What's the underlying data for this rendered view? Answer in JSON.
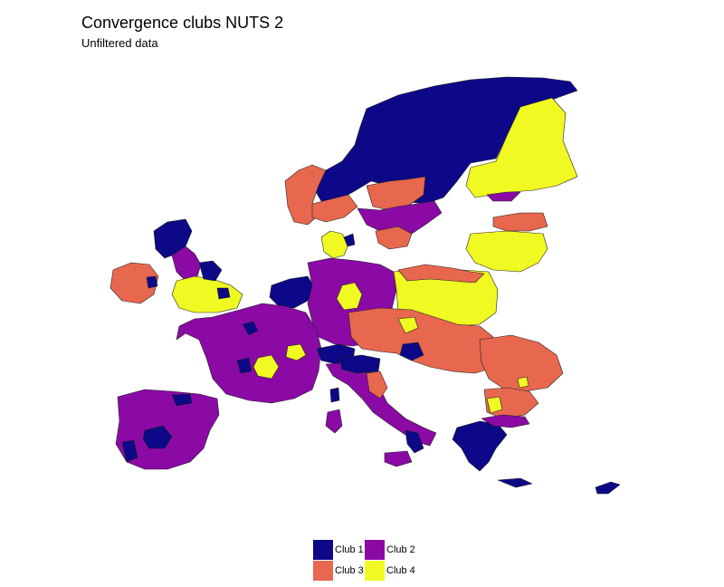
{
  "title": "Convergence clubs NUTS 2",
  "subtitle": "Unfiltered data",
  "colors": {
    "club1": "#0d0887",
    "club2": "#8b0aa5",
    "club3": "#e8674f",
    "club4": "#f0f921",
    "border": "#222222"
  },
  "legend": [
    {
      "label": "Club 1",
      "color": "#0d0887"
    },
    {
      "label": "Club 2",
      "color": "#8b0aa5"
    },
    {
      "label": "Club 3",
      "color": "#e8674f"
    },
    {
      "label": "Club 4",
      "color": "#f0f921"
    }
  ]
}
